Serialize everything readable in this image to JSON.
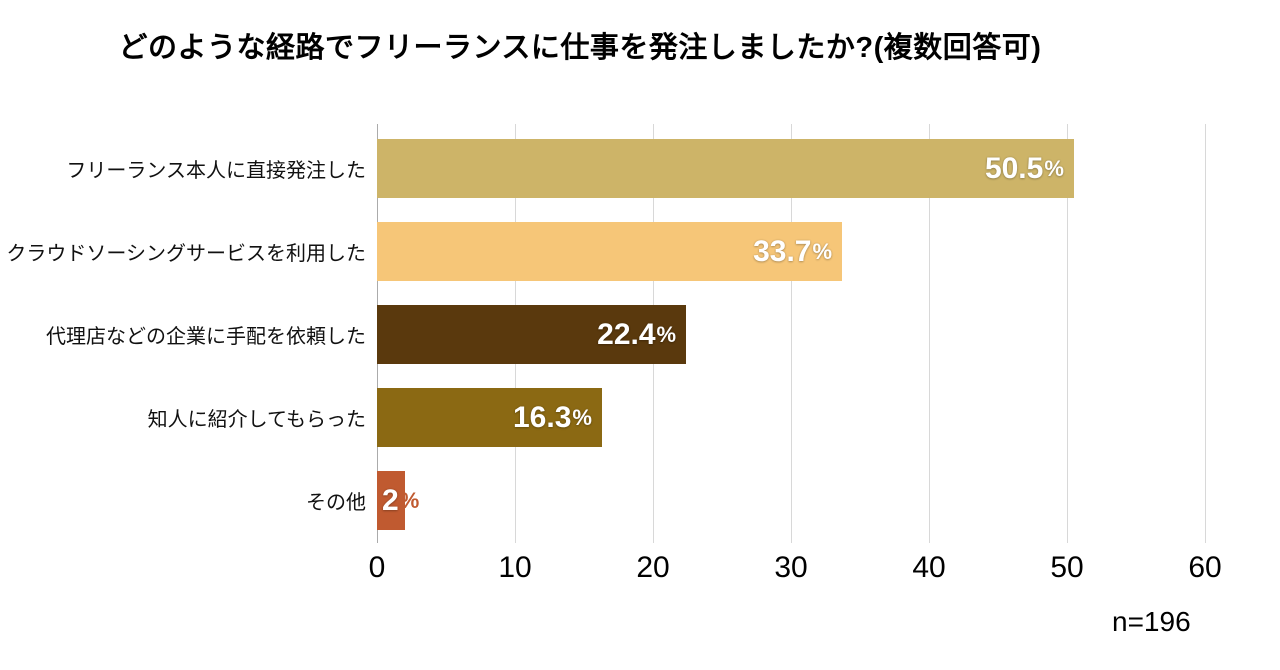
{
  "title": "どのような経路でフリーランスに仕事を発注しましたか?(複数回答可)",
  "footnote": "n=196",
  "chart_data": {
    "type": "bar",
    "orientation": "horizontal",
    "title": "どのような経路でフリーランスに仕事を発注しましたか?(複数回答可)",
    "categories": [
      "フリーランス本人に直接発注した",
      "クラウドソーシングサービスを利用した",
      "代理店などの企業に手配を依頼した",
      "知人に紹介してもらった",
      "その他"
    ],
    "values": [
      50.5,
      33.7,
      22.4,
      16.3,
      2
    ],
    "value_labels": [
      {
        "num": "50.5",
        "pct": "%"
      },
      {
        "num": "33.7",
        "pct": "%"
      },
      {
        "num": "22.4",
        "pct": "%"
      },
      {
        "num": "16.3",
        "pct": "%"
      },
      {
        "num": "2",
        "pct": "%"
      }
    ],
    "bar_colors": [
      "#CDB468",
      "#F6C678",
      "#5A390D",
      "#8B6913",
      "#C05A30"
    ],
    "xlim": [
      0,
      60
    ],
    "xticks": [
      0,
      10,
      20,
      30,
      40,
      50,
      60
    ],
    "grid": true,
    "legend": false,
    "sample_size": "n=196",
    "colors": {
      "grid_line": "#D8D8D8",
      "axis_line": "#ABABAB",
      "value_text": "#FFFFFF",
      "label_text": "#111111"
    }
  }
}
